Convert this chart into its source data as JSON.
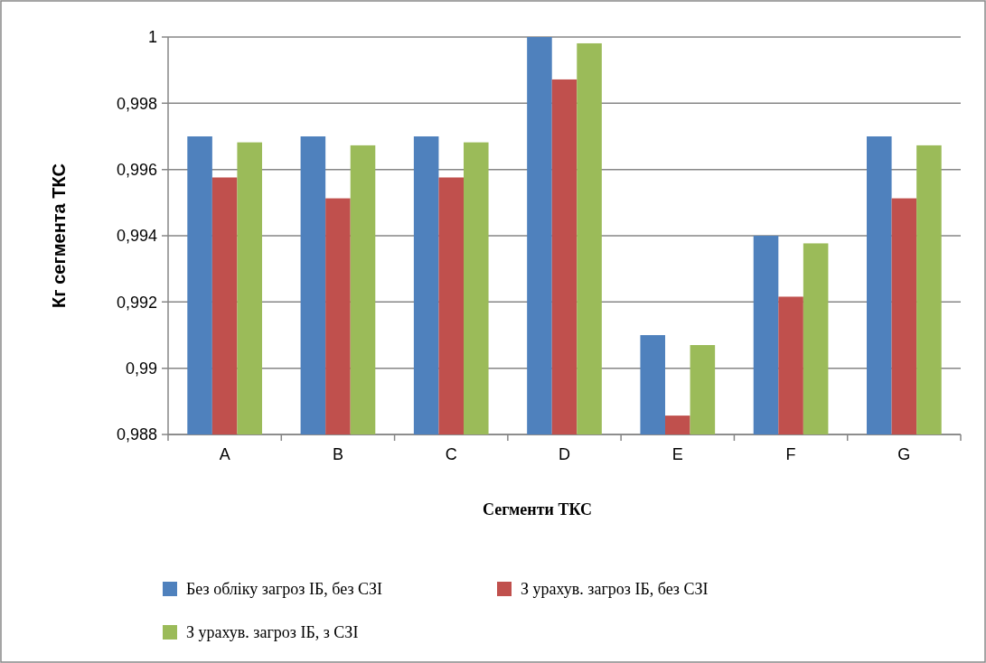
{
  "chart_data": {
    "type": "bar",
    "xlabel": "Сегменти ТКС",
    "ylabel": "Кг сегмента ТКС",
    "categories": [
      "A",
      "B",
      "C",
      "D",
      "E",
      "F",
      "G"
    ],
    "series": [
      {
        "name": "Без обліку загроз ІБ, без СЗІ",
        "color": "#4f81bd",
        "values": [
          0.997,
          0.997,
          0.997,
          1.0,
          0.991,
          0.994,
          0.997
        ]
      },
      {
        "name": "З урахув. загроз ІБ, без СЗІ",
        "color": "#c0504d",
        "values": [
          0.99576,
          0.99513,
          0.99576,
          0.99872,
          0.98857,
          0.99216,
          0.99513
        ]
      },
      {
        "name": "З урахув. загроз ІБ, з СЗІ",
        "color": "#9bbb59",
        "values": [
          0.99682,
          0.99673,
          0.99682,
          0.99981,
          0.9907,
          0.99377,
          0.99673
        ]
      }
    ],
    "ylim": [
      0.988,
      1
    ],
    "yticks": [
      {
        "value": 0.988,
        "label": "0,988"
      },
      {
        "value": 0.99,
        "label": "0,99"
      },
      {
        "value": 0.992,
        "label": "0,992"
      },
      {
        "value": 0.994,
        "label": "0,994"
      },
      {
        "value": 0.996,
        "label": "0,996"
      },
      {
        "value": 0.998,
        "label": "0,998"
      },
      1
    ],
    "grid": "y",
    "legend": "bottom"
  }
}
